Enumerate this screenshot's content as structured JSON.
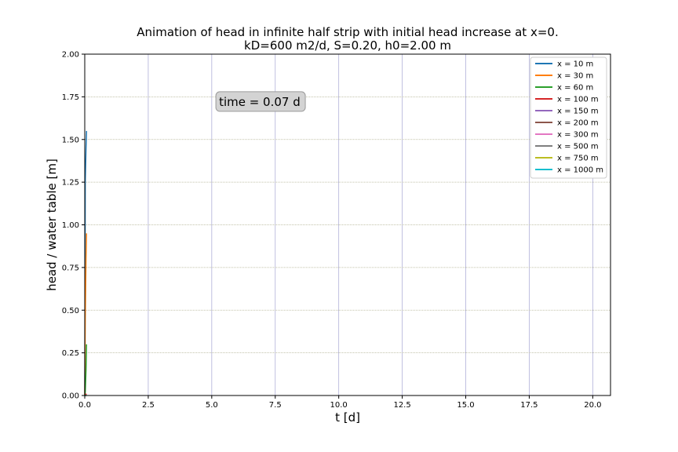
{
  "chart_data": {
    "type": "line",
    "title_line1": "Animation of head in infinite half strip with initial head increase at x=0.",
    "title_line2": "kD=600 m2/d, S=0.20, h0=2.00 m",
    "xlabel": "t [d]",
    "ylabel": "head / water table [m]",
    "xlim": [
      0,
      20.7
    ],
    "ylim": [
      0,
      2.0
    ],
    "xticks": [
      0.0,
      2.5,
      5.0,
      7.5,
      10.0,
      12.5,
      15.0,
      17.5,
      20.0
    ],
    "xtick_labels": [
      "0.0",
      "2.5",
      "5.0",
      "7.5",
      "10.0",
      "12.5",
      "15.0",
      "17.5",
      "20.0"
    ],
    "yticks": [
      0.0,
      0.25,
      0.5,
      0.75,
      1.0,
      1.25,
      1.5,
      1.75,
      2.0
    ],
    "ytick_labels": [
      "0.00",
      "0.25",
      "0.50",
      "0.75",
      "1.00",
      "1.25",
      "1.50",
      "1.75",
      "2.00"
    ],
    "grid": true,
    "legend_position": "top-right",
    "annotation": {
      "text": "time =  0.07 d",
      "x": 5.1,
      "y": 1.72
    },
    "series": [
      {
        "name": "x = 10 m",
        "color": "#1f77b4",
        "x": [
          0.0,
          0.02,
          0.05,
          0.07
        ],
        "y": [
          0.0,
          1.25,
          1.45,
          1.55
        ]
      },
      {
        "name": "x = 30 m",
        "color": "#ff7f0e",
        "x": [
          0.0,
          0.02,
          0.05,
          0.07
        ],
        "y": [
          0.0,
          0.45,
          0.8,
          0.95
        ]
      },
      {
        "name": "x = 60 m",
        "color": "#2ca02c",
        "x": [
          0.0,
          0.02,
          0.05,
          0.07
        ],
        "y": [
          0.0,
          0.02,
          0.15,
          0.3
        ]
      },
      {
        "name": "x = 100 m",
        "color": "#d62728",
        "x": [
          0.0,
          0.07
        ],
        "y": [
          0.0,
          0.01
        ]
      },
      {
        "name": "x = 150 m",
        "color": "#9467bd",
        "x": [
          0.0,
          0.07
        ],
        "y": [
          0.0,
          0.0
        ]
      },
      {
        "name": "x = 200 m",
        "color": "#8c564b",
        "x": [
          0.0,
          0.07
        ],
        "y": [
          0.0,
          0.0
        ]
      },
      {
        "name": "x = 300 m",
        "color": "#e377c2",
        "x": [
          0.0,
          0.07
        ],
        "y": [
          0.0,
          0.0
        ]
      },
      {
        "name": "x = 500 m",
        "color": "#7f7f7f",
        "x": [
          0.0,
          0.07
        ],
        "y": [
          0.0,
          0.0
        ]
      },
      {
        "name": "x = 750 m",
        "color": "#bcbd22",
        "x": [
          0.0,
          0.07
        ],
        "y": [
          0.0,
          0.0
        ]
      },
      {
        "name": "x = 1000 m",
        "color": "#17becf",
        "x": [
          0.0,
          0.07
        ],
        "y": [
          0.0,
          0.0
        ]
      }
    ]
  }
}
